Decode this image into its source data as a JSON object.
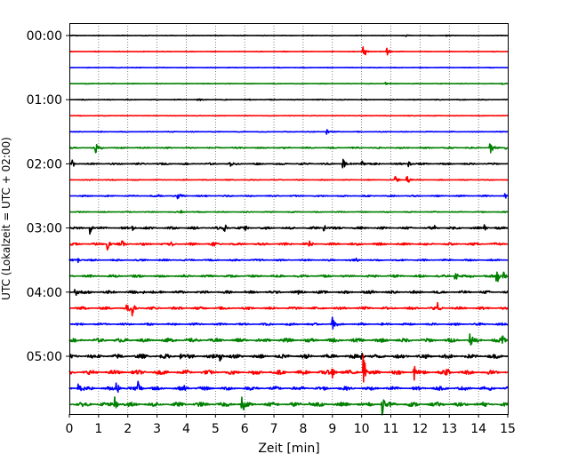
{
  "chart_data": {
    "type": "line",
    "title": "",
    "xlabel": "Zeit  [min]",
    "ylabel": "UTC (Lokalzeit = UTC + 02:00)",
    "xlim": [
      0,
      15
    ],
    "x_ticks": [
      "0",
      "1",
      "2",
      "3",
      "4",
      "5",
      "6",
      "7",
      "8",
      "9",
      "10",
      "11",
      "12",
      "13",
      "14",
      "15"
    ],
    "y_ticks": [
      "00:00",
      "01:00",
      "02:00",
      "03:00",
      "04:00",
      "05:00"
    ],
    "grid": "vertical dotted",
    "trace_interval_minutes": 15,
    "trace_colors": [
      "#000000",
      "#ff0000",
      "#0000ff",
      "#008000"
    ],
    "series": [
      {
        "start": "00:00",
        "noise": 0.35,
        "events": [
          [
            11.5,
            1.6
          ],
          [
            12.9,
            1.3
          ]
        ]
      },
      {
        "start": "00:15",
        "noise": 0.35,
        "events": [
          [
            10.05,
            7
          ],
          [
            10.85,
            6
          ],
          [
            10.1,
            3
          ]
        ]
      },
      {
        "start": "00:30",
        "noise": 0.35,
        "events": []
      },
      {
        "start": "00:45",
        "noise": 0.35,
        "events": [
          [
            10.8,
            2
          ],
          [
            14.8,
            1.5
          ]
        ]
      },
      {
        "start": "01:00",
        "noise": 0.45,
        "events": [
          [
            4.4,
            3
          ]
        ]
      },
      {
        "start": "01:15",
        "noise": 0.3,
        "events": []
      },
      {
        "start": "01:30",
        "noise": 0.45,
        "events": [
          [
            8.8,
            3
          ]
        ]
      },
      {
        "start": "01:45",
        "noise": 0.8,
        "events": [
          [
            0.9,
            6
          ],
          [
            1.1,
            2
          ],
          [
            14.4,
            10
          ],
          [
            14.9,
            3
          ]
        ]
      },
      {
        "start": "02:00",
        "noise": 1.0,
        "events": [
          [
            0.1,
            5
          ],
          [
            5.5,
            2.5
          ],
          [
            9.35,
            8
          ],
          [
            10.0,
            5
          ],
          [
            11.6,
            5
          ]
        ]
      },
      {
        "start": "02:15",
        "noise": 0.5,
        "events": [
          [
            11.15,
            6
          ],
          [
            11.55,
            9
          ]
        ]
      },
      {
        "start": "02:30",
        "noise": 0.8,
        "events": [
          [
            3.7,
            8
          ],
          [
            3.05,
            3
          ],
          [
            14.9,
            3
          ]
        ]
      },
      {
        "start": "02:45",
        "noise": 0.6,
        "events": [
          [
            3.8,
            2.5
          ]
        ]
      },
      {
        "start": "03:00",
        "noise": 1.3,
        "events": [
          [
            0.7,
            7
          ],
          [
            2.15,
            4
          ],
          [
            5.3,
            6
          ],
          [
            6.0,
            4
          ],
          [
            8.7,
            5
          ],
          [
            12.5,
            3
          ],
          [
            14.2,
            4
          ]
        ]
      },
      {
        "start": "03:15",
        "noise": 1.3,
        "events": [
          [
            1.3,
            7
          ],
          [
            1.8,
            4
          ],
          [
            3.5,
            5
          ],
          [
            4.9,
            4
          ],
          [
            8.2,
            3
          ]
        ]
      },
      {
        "start": "03:30",
        "noise": 1.0,
        "events": [
          [
            0.3,
            4
          ],
          [
            9.8,
            3
          ]
        ]
      },
      {
        "start": "03:45",
        "noise": 1.4,
        "events": [
          [
            13.2,
            9
          ],
          [
            13.7,
            3
          ],
          [
            14.6,
            16
          ],
          [
            14.85,
            6
          ]
        ]
      },
      {
        "start": "04:00",
        "noise": 1.5,
        "events": [
          [
            0.2,
            8
          ],
          [
            2.5,
            3
          ],
          [
            7.8,
            3
          ],
          [
            10.3,
            3
          ]
        ]
      },
      {
        "start": "04:15",
        "noise": 1.5,
        "events": [
          [
            1.95,
            8
          ],
          [
            2.15,
            10
          ],
          [
            12.6,
            8
          ]
        ]
      },
      {
        "start": "04:30",
        "noise": 1.2,
        "events": [
          [
            9.0,
            10
          ]
        ]
      },
      {
        "start": "04:45",
        "noise": 2.1,
        "events": [
          [
            13.7,
            9
          ],
          [
            14.8,
            8
          ]
        ]
      },
      {
        "start": "05:00",
        "noise": 2.3,
        "events": [
          [
            5.15,
            7
          ],
          [
            10.0,
            10
          ],
          [
            3.8,
            3
          ]
        ]
      },
      {
        "start": "05:15",
        "noise": 2.3,
        "events": [
          [
            10.05,
            28
          ],
          [
            9.0,
            9
          ],
          [
            11.8,
            10
          ],
          [
            12.9,
            8
          ],
          [
            4.0,
            3
          ]
        ]
      },
      {
        "start": "05:30",
        "noise": 2.0,
        "events": [
          [
            0.3,
            7
          ],
          [
            1.6,
            10
          ],
          [
            2.35,
            13
          ],
          [
            3.9,
            4
          ],
          [
            14.4,
            4
          ]
        ]
      },
      {
        "start": "05:45",
        "noise": 2.3,
        "events": [
          [
            1.55,
            10
          ],
          [
            5.9,
            12
          ],
          [
            10.7,
            12
          ],
          [
            8.2,
            3
          ]
        ]
      }
    ]
  }
}
